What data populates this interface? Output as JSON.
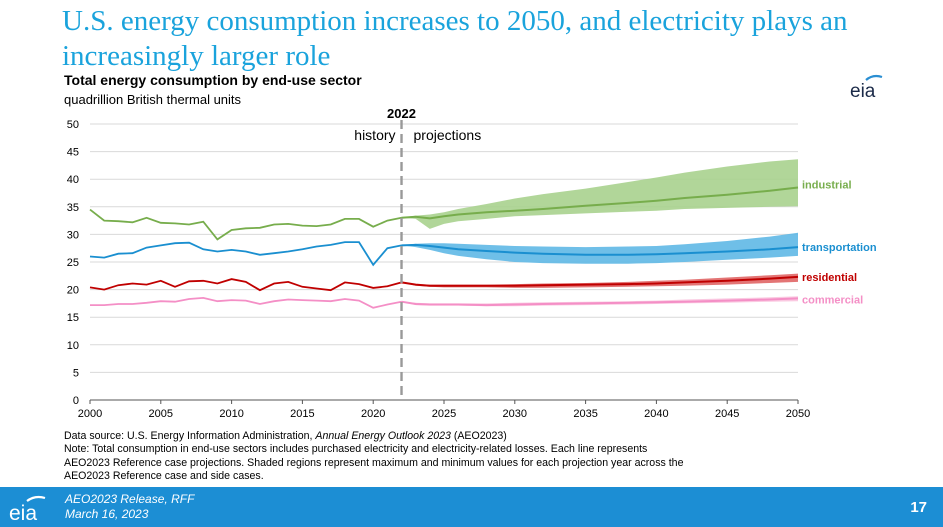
{
  "slide": {
    "title": "U.S. energy consumption increases to 2050, and electricity plays an increasingly larger role",
    "page_number": "17"
  },
  "logo": {
    "text": "eia"
  },
  "footer": {
    "line1": "AEO2023 Release, RFF",
    "line2": "March 16, 2023"
  },
  "notes": {
    "source_prefix": "Data source: U.S. Energy Information Administration, ",
    "source_italic": "Annual Energy Outlook 2023",
    "source_suffix": " (AEO2023)",
    "note_lines": [
      "Note: Total consumption in end-use sectors includes purchased electricity and electricity-related losses. Each line represents",
      "AEO2023 Reference case projections. Shaded regions represent maximum and minimum values for each projection year across the",
      "AEO2023 Reference case and side cases."
    ]
  },
  "colors": {
    "industrial": "#77ad4c",
    "industrial_band": "#a9d18e",
    "transportation": "#1a8fd0",
    "transportation_band": "#5fb8e6",
    "residential": "#c00000",
    "residential_band": "#e06666",
    "commercial": "#f48fc6",
    "commercial_band": "#f9c3de",
    "divider": "#999999"
  },
  "chart_data": {
    "type": "line",
    "title": "Total energy consumption by end-use sector",
    "subtitle": "quadrillion British thermal units",
    "xlim": [
      2000,
      2050
    ],
    "ylim": [
      0,
      50
    ],
    "x_ticks": [
      2000,
      2005,
      2010,
      2015,
      2020,
      2025,
      2030,
      2035,
      2040,
      2045,
      2050
    ],
    "y_ticks": [
      0,
      5,
      10,
      15,
      20,
      25,
      30,
      35,
      40,
      45,
      50
    ],
    "divider": {
      "x": 2022,
      "label": "2022",
      "left_label": "history",
      "right_label": "projections"
    },
    "legend_position": "right-end-labels",
    "series": [
      {
        "name": "industrial",
        "history_x": [
          2000,
          2001,
          2002,
          2003,
          2004,
          2005,
          2006,
          2007,
          2008,
          2009,
          2010,
          2011,
          2012,
          2013,
          2014,
          2015,
          2016,
          2017,
          2018,
          2019,
          2020,
          2021,
          2022
        ],
        "history_y": [
          34.5,
          32.5,
          32.4,
          32.2,
          33.0,
          32.1,
          32.0,
          31.8,
          32.3,
          29.1,
          30.8,
          31.1,
          31.2,
          31.8,
          31.9,
          31.6,
          31.5,
          31.8,
          32.8,
          32.8,
          31.4,
          32.5,
          33.0
        ],
        "proj_x": [
          2022,
          2023,
          2024,
          2025,
          2026,
          2028,
          2030,
          2032,
          2035,
          2038,
          2040,
          2042,
          2045,
          2048,
          2050
        ],
        "proj_y": [
          33.0,
          33.2,
          32.9,
          33.3,
          33.6,
          34.0,
          34.3,
          34.6,
          35.2,
          35.7,
          36.1,
          36.6,
          37.2,
          37.9,
          38.5
        ],
        "band_upper": [
          33.0,
          33.4,
          33.6,
          34.0,
          34.6,
          35.5,
          36.5,
          37.3,
          38.3,
          39.5,
          40.3,
          41.2,
          42.3,
          43.2,
          43.6
        ],
        "band_lower": [
          33.0,
          32.8,
          31.0,
          31.9,
          32.4,
          32.8,
          33.3,
          33.5,
          33.8,
          34.1,
          34.3,
          34.6,
          34.8,
          35.0,
          35.1
        ]
      },
      {
        "name": "transportation",
        "history_x": [
          2000,
          2001,
          2002,
          2003,
          2004,
          2005,
          2006,
          2007,
          2008,
          2009,
          2010,
          2011,
          2012,
          2013,
          2014,
          2015,
          2016,
          2017,
          2018,
          2019,
          2020,
          2021,
          2022
        ],
        "history_y": [
          26.0,
          25.8,
          26.5,
          26.6,
          27.6,
          28.0,
          28.4,
          28.5,
          27.3,
          26.9,
          27.2,
          26.9,
          26.3,
          26.6,
          26.9,
          27.3,
          27.8,
          28.1,
          28.6,
          28.6,
          24.5,
          27.5,
          28.0
        ],
        "proj_x": [
          2022,
          2023,
          2024,
          2025,
          2026,
          2028,
          2030,
          2032,
          2035,
          2038,
          2040,
          2042,
          2045,
          2048,
          2050
        ],
        "proj_y": [
          28.0,
          28.1,
          27.9,
          27.6,
          27.3,
          27.0,
          26.7,
          26.5,
          26.3,
          26.3,
          26.4,
          26.6,
          26.9,
          27.3,
          27.7
        ],
        "band_upper": [
          28.0,
          28.3,
          28.4,
          28.4,
          28.3,
          28.1,
          27.9,
          27.8,
          27.7,
          27.8,
          27.9,
          28.2,
          28.8,
          29.6,
          30.3
        ],
        "band_lower": [
          28.0,
          27.7,
          27.2,
          26.6,
          26.1,
          25.5,
          25.0,
          24.8,
          24.7,
          24.7,
          24.8,
          25.0,
          25.4,
          25.8,
          26.1
        ]
      },
      {
        "name": "residential",
        "history_x": [
          2000,
          2001,
          2002,
          2003,
          2004,
          2005,
          2006,
          2007,
          2008,
          2009,
          2010,
          2011,
          2012,
          2013,
          2014,
          2015,
          2016,
          2017,
          2018,
          2019,
          2020,
          2021,
          2022
        ],
        "history_y": [
          20.4,
          20.0,
          20.8,
          21.1,
          20.9,
          21.6,
          20.5,
          21.5,
          21.6,
          21.1,
          21.9,
          21.4,
          19.9,
          21.1,
          21.4,
          20.5,
          20.2,
          19.9,
          21.3,
          21.0,
          20.3,
          20.6,
          21.3
        ],
        "proj_x": [
          2022,
          2023,
          2024,
          2025,
          2026,
          2028,
          2030,
          2032,
          2035,
          2038,
          2040,
          2042,
          2045,
          2048,
          2050
        ],
        "proj_y": [
          21.3,
          20.9,
          20.7,
          20.7,
          20.7,
          20.7,
          20.7,
          20.8,
          20.9,
          21.0,
          21.1,
          21.3,
          21.6,
          22.0,
          22.3
        ],
        "band_upper": [
          21.3,
          21.0,
          20.9,
          20.9,
          20.9,
          20.9,
          21.0,
          21.1,
          21.2,
          21.4,
          21.6,
          21.8,
          22.2,
          22.6,
          22.9
        ],
        "band_lower": [
          21.3,
          20.7,
          20.5,
          20.4,
          20.4,
          20.4,
          20.3,
          20.3,
          20.4,
          20.5,
          20.6,
          20.7,
          20.9,
          21.2,
          21.4
        ]
      },
      {
        "name": "commercial",
        "history_x": [
          2000,
          2001,
          2002,
          2003,
          2004,
          2005,
          2006,
          2007,
          2008,
          2009,
          2010,
          2011,
          2012,
          2013,
          2014,
          2015,
          2016,
          2017,
          2018,
          2019,
          2020,
          2021,
          2022
        ],
        "history_y": [
          17.2,
          17.2,
          17.4,
          17.4,
          17.6,
          17.9,
          17.8,
          18.3,
          18.5,
          17.9,
          18.1,
          18.0,
          17.4,
          17.9,
          18.2,
          18.1,
          18.0,
          17.9,
          18.3,
          18.0,
          16.7,
          17.3,
          17.8
        ],
        "proj_x": [
          2022,
          2023,
          2024,
          2025,
          2026,
          2028,
          2030,
          2032,
          2035,
          2038,
          2040,
          2042,
          2045,
          2048,
          2050
        ],
        "proj_y": [
          17.8,
          17.4,
          17.3,
          17.3,
          17.3,
          17.2,
          17.3,
          17.4,
          17.5,
          17.6,
          17.7,
          17.8,
          18.0,
          18.2,
          18.4
        ],
        "band_upper": [
          17.8,
          17.6,
          17.5,
          17.5,
          17.5,
          17.5,
          17.6,
          17.7,
          17.8,
          17.9,
          18.0,
          18.2,
          18.4,
          18.6,
          18.8
        ],
        "band_lower": [
          17.8,
          17.2,
          17.1,
          17.1,
          17.1,
          17.0,
          17.0,
          17.1,
          17.2,
          17.3,
          17.4,
          17.5,
          17.6,
          17.8,
          17.9
        ]
      }
    ]
  }
}
